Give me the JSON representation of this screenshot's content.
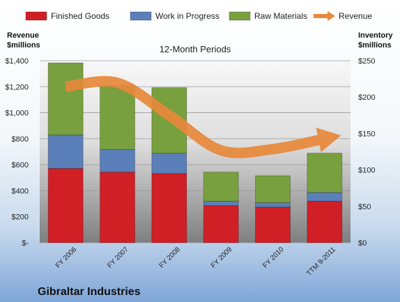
{
  "chart_data": {
    "type": "bar",
    "title": "12-Month Periods",
    "company": "Gibraltar Industries",
    "categories": [
      "FY 2006",
      "FY 2007",
      "FY 2008",
      "FY 2009",
      "FY 2010",
      "TTM 9-2011"
    ],
    "stack_axis": "right",
    "series": [
      {
        "name": "Finished Goods",
        "color": "#d11f26",
        "values": [
          102,
          97,
          95,
          51,
          49,
          57
        ]
      },
      {
        "name": "Work in Progress",
        "color": "#5b7fb8",
        "values": [
          46,
          31,
          28,
          6,
          6,
          12
        ]
      },
      {
        "name": "Raw Materials",
        "color": "#79a03e",
        "values": [
          99,
          88,
          90,
          40,
          37,
          54
        ]
      }
    ],
    "line_series": {
      "name": "Revenue",
      "color": "#e8893b",
      "axis": "left",
      "values": [
        1200,
        1230,
        980,
        710,
        720,
        800
      ]
    },
    "left_axis": {
      "label_line1": "Revenue",
      "label_line2": "$millions",
      "ylim": [
        0,
        1400
      ],
      "ticks": [
        "$-",
        "$200",
        "$400",
        "$600",
        "$800",
        "$1,000",
        "$1,200",
        "$1,400"
      ]
    },
    "right_axis": {
      "label_line1": "Inventory",
      "label_line2": "$millions",
      "ylim": [
        0,
        250
      ],
      "ticks": [
        "$0",
        "$50",
        "$100",
        "$150",
        "$200",
        "$250"
      ]
    },
    "legend": {
      "position": "top",
      "entries": [
        "Finished Goods",
        "Work in Progress",
        "Raw Materials",
        "Revenue"
      ]
    },
    "grid": true
  }
}
